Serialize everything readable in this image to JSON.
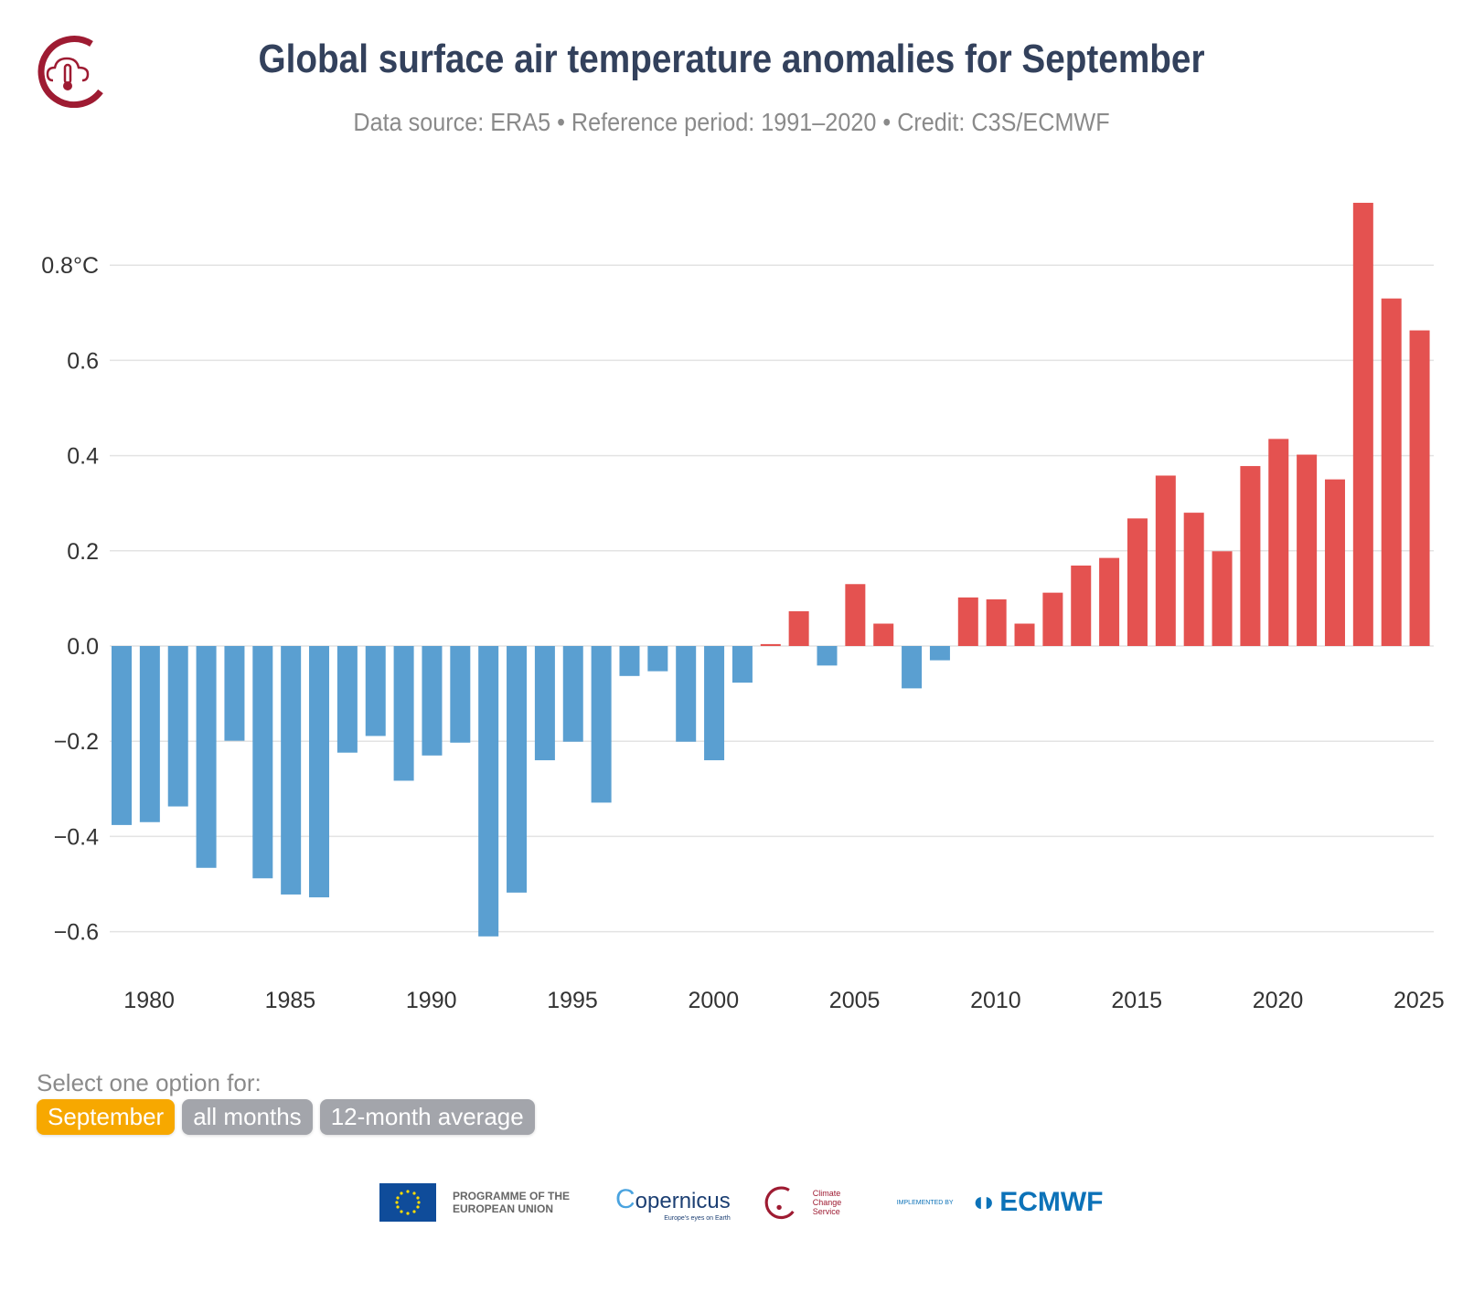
{
  "header": {
    "title": "Global surface air temperature anomalies for September",
    "subtitle": "Data source: ERA5 • Reference period: 1991–2020 • Credit: C3S/ECMWF"
  },
  "selector": {
    "label": "Select one option for:",
    "options": [
      {
        "label": "September",
        "active": true
      },
      {
        "label": "all months",
        "active": false
      },
      {
        "label": "12-month average",
        "active": false
      }
    ]
  },
  "footer": {
    "eu": "PROGRAMME OF THE EUROPEAN UNION",
    "copernicus": "opernicus",
    "copernicus_tagline": "Europe's eyes on Earth",
    "c3s": "Climate Change Service",
    "implemented_by": "IMPLEMENTED BY",
    "ecmwf": "ECMWF"
  },
  "colors": {
    "positive": "#e45250",
    "negative": "#5a9fd1",
    "title": "#33415c",
    "active_option": "#f7a800",
    "inactive_option": "#a3a5ab"
  },
  "chart_data": {
    "type": "bar",
    "title": "Global surface air temperature anomalies for September",
    "ylim": [
      -0.7,
      0.95
    ],
    "yticks": [
      {
        "v": 0.8,
        "label": "0.8°C"
      },
      {
        "v": 0.6,
        "label": "0.6"
      },
      {
        "v": 0.4,
        "label": "0.4"
      },
      {
        "v": 0.2,
        "label": "0.2"
      },
      {
        "v": 0.0,
        "label": "0.0"
      },
      {
        "v": -0.2,
        "label": "−0.2"
      },
      {
        "v": -0.4,
        "label": "−0.4"
      },
      {
        "v": -0.6,
        "label": "−0.6"
      }
    ],
    "xticks": [
      1980,
      1985,
      1990,
      1995,
      2000,
      2005,
      2010,
      2015,
      2020,
      2025
    ],
    "grid": true,
    "x": [
      1979,
      1980,
      1981,
      1982,
      1983,
      1984,
      1985,
      1986,
      1987,
      1988,
      1989,
      1990,
      1991,
      1992,
      1993,
      1994,
      1995,
      1996,
      1997,
      1998,
      1999,
      2000,
      2001,
      2002,
      2003,
      2004,
      2005,
      2006,
      2007,
      2008,
      2009,
      2010,
      2011,
      2012,
      2013,
      2014,
      2015,
      2016,
      2017,
      2018,
      2019,
      2020,
      2021,
      2022,
      2023,
      2024,
      2025
    ],
    "values": [
      -0.376,
      -0.37,
      -0.337,
      -0.466,
      -0.199,
      -0.488,
      -0.522,
      -0.528,
      -0.224,
      -0.189,
      -0.283,
      -0.23,
      -0.203,
      -0.61,
      -0.518,
      -0.24,
      -0.201,
      -0.329,
      -0.063,
      -0.053,
      -0.201,
      -0.24,
      -0.077,
      0.004,
      0.073,
      -0.041,
      0.13,
      0.047,
      -0.089,
      -0.03,
      0.102,
      0.098,
      0.047,
      0.112,
      0.169,
      0.185,
      0.268,
      0.358,
      0.28,
      0.199,
      0.378,
      0.435,
      0.402,
      0.35,
      0.931,
      0.73,
      0.663
    ]
  }
}
